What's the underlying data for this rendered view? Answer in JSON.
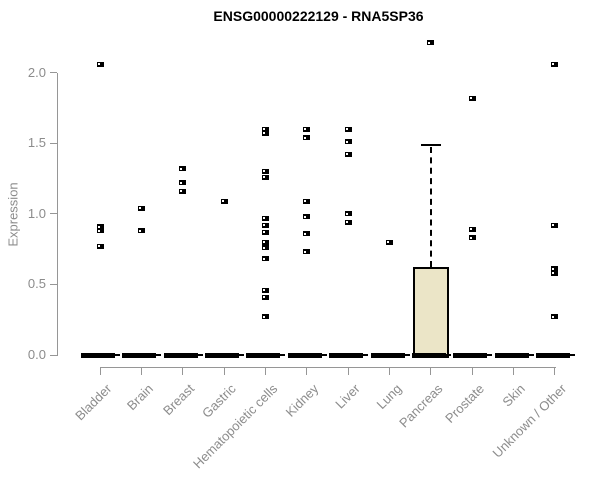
{
  "title": "ENSG00000222129 - RNA5SP36",
  "chart_data": {
    "type": "boxplot",
    "title": "ENSG00000222129 - RNA5SP36",
    "ylabel": "Expression",
    "xlabel": "",
    "ylim": [
      0.0,
      2.25
    ],
    "yticks": [
      "0.0",
      "0.5",
      "1.0",
      "1.5",
      "2.0"
    ],
    "grid": false,
    "legend": false,
    "categories": [
      "Bladder",
      "Brain",
      "Breast",
      "Gastric",
      "Hematopoietic cells",
      "Kidney",
      "Liver",
      "Lung",
      "Pancreas",
      "Prostate",
      "Skin",
      "Unknown / Other"
    ],
    "series": [
      {
        "category": "Bladder",
        "median": 0,
        "q1": 0,
        "q3": 0,
        "whisker_low": 0,
        "whisker_high": 0,
        "points": [
          2.06,
          0.91,
          0.88,
          0.77
        ]
      },
      {
        "category": "Brain",
        "median": 0,
        "q1": 0,
        "q3": 0,
        "whisker_low": 0,
        "whisker_high": 0,
        "points": [
          1.04,
          0.88
        ]
      },
      {
        "category": "Breast",
        "median": 0,
        "q1": 0,
        "q3": 0,
        "whisker_low": 0,
        "whisker_high": 0,
        "points": [
          1.32,
          1.22,
          1.16
        ]
      },
      {
        "category": "Gastric",
        "median": 0,
        "q1": 0,
        "q3": 0,
        "whisker_low": 0,
        "whisker_high": 0,
        "points": [
          1.09
        ]
      },
      {
        "category": "Hematopoietic cells",
        "median": 0,
        "q1": 0,
        "q3": 0,
        "whisker_low": 0,
        "whisker_high": 0,
        "points": [
          1.6,
          1.57,
          1.3,
          1.26,
          0.97,
          0.92,
          0.87,
          0.8,
          0.76,
          0.68,
          0.46,
          0.41,
          0.27
        ]
      },
      {
        "category": "Kidney",
        "median": 0,
        "q1": 0,
        "q3": 0,
        "whisker_low": 0,
        "whisker_high": 0,
        "points": [
          1.6,
          1.54,
          1.09,
          0.98,
          0.86,
          0.73
        ]
      },
      {
        "category": "Liver",
        "median": 0,
        "q1": 0,
        "q3": 0,
        "whisker_low": 0,
        "whisker_high": 0,
        "points": [
          1.6,
          1.51,
          1.42,
          1.0,
          0.94
        ]
      },
      {
        "category": "Lung",
        "median": 0,
        "q1": 0,
        "q3": 0,
        "whisker_low": 0,
        "whisker_high": 0,
        "points": [
          0.8
        ]
      },
      {
        "category": "Pancreas",
        "median": 0,
        "q1": 0,
        "q3": 0.62,
        "whisker_low": 0,
        "whisker_high": 1.49,
        "points": [
          2.21
        ]
      },
      {
        "category": "Prostate",
        "median": 0,
        "q1": 0,
        "q3": 0,
        "whisker_low": 0,
        "whisker_high": 0,
        "points": [
          1.82,
          0.89,
          0.83
        ]
      },
      {
        "category": "Skin",
        "median": 0,
        "q1": 0,
        "q3": 0,
        "whisker_low": 0,
        "whisker_high": 0,
        "points": []
      },
      {
        "category": "Unknown / Other",
        "median": 0,
        "q1": 0,
        "q3": 0,
        "whisker_low": 0,
        "whisker_high": 0,
        "points": [
          2.06,
          0.92,
          0.61,
          0.58,
          0.27
        ]
      }
    ],
    "colors": {
      "box_fill": "#EBE5C7",
      "box_border": "#000000",
      "point": "#000000",
      "axis_text": "#8c8c8c",
      "axis_line": "#969696",
      "title": "#000000"
    }
  }
}
